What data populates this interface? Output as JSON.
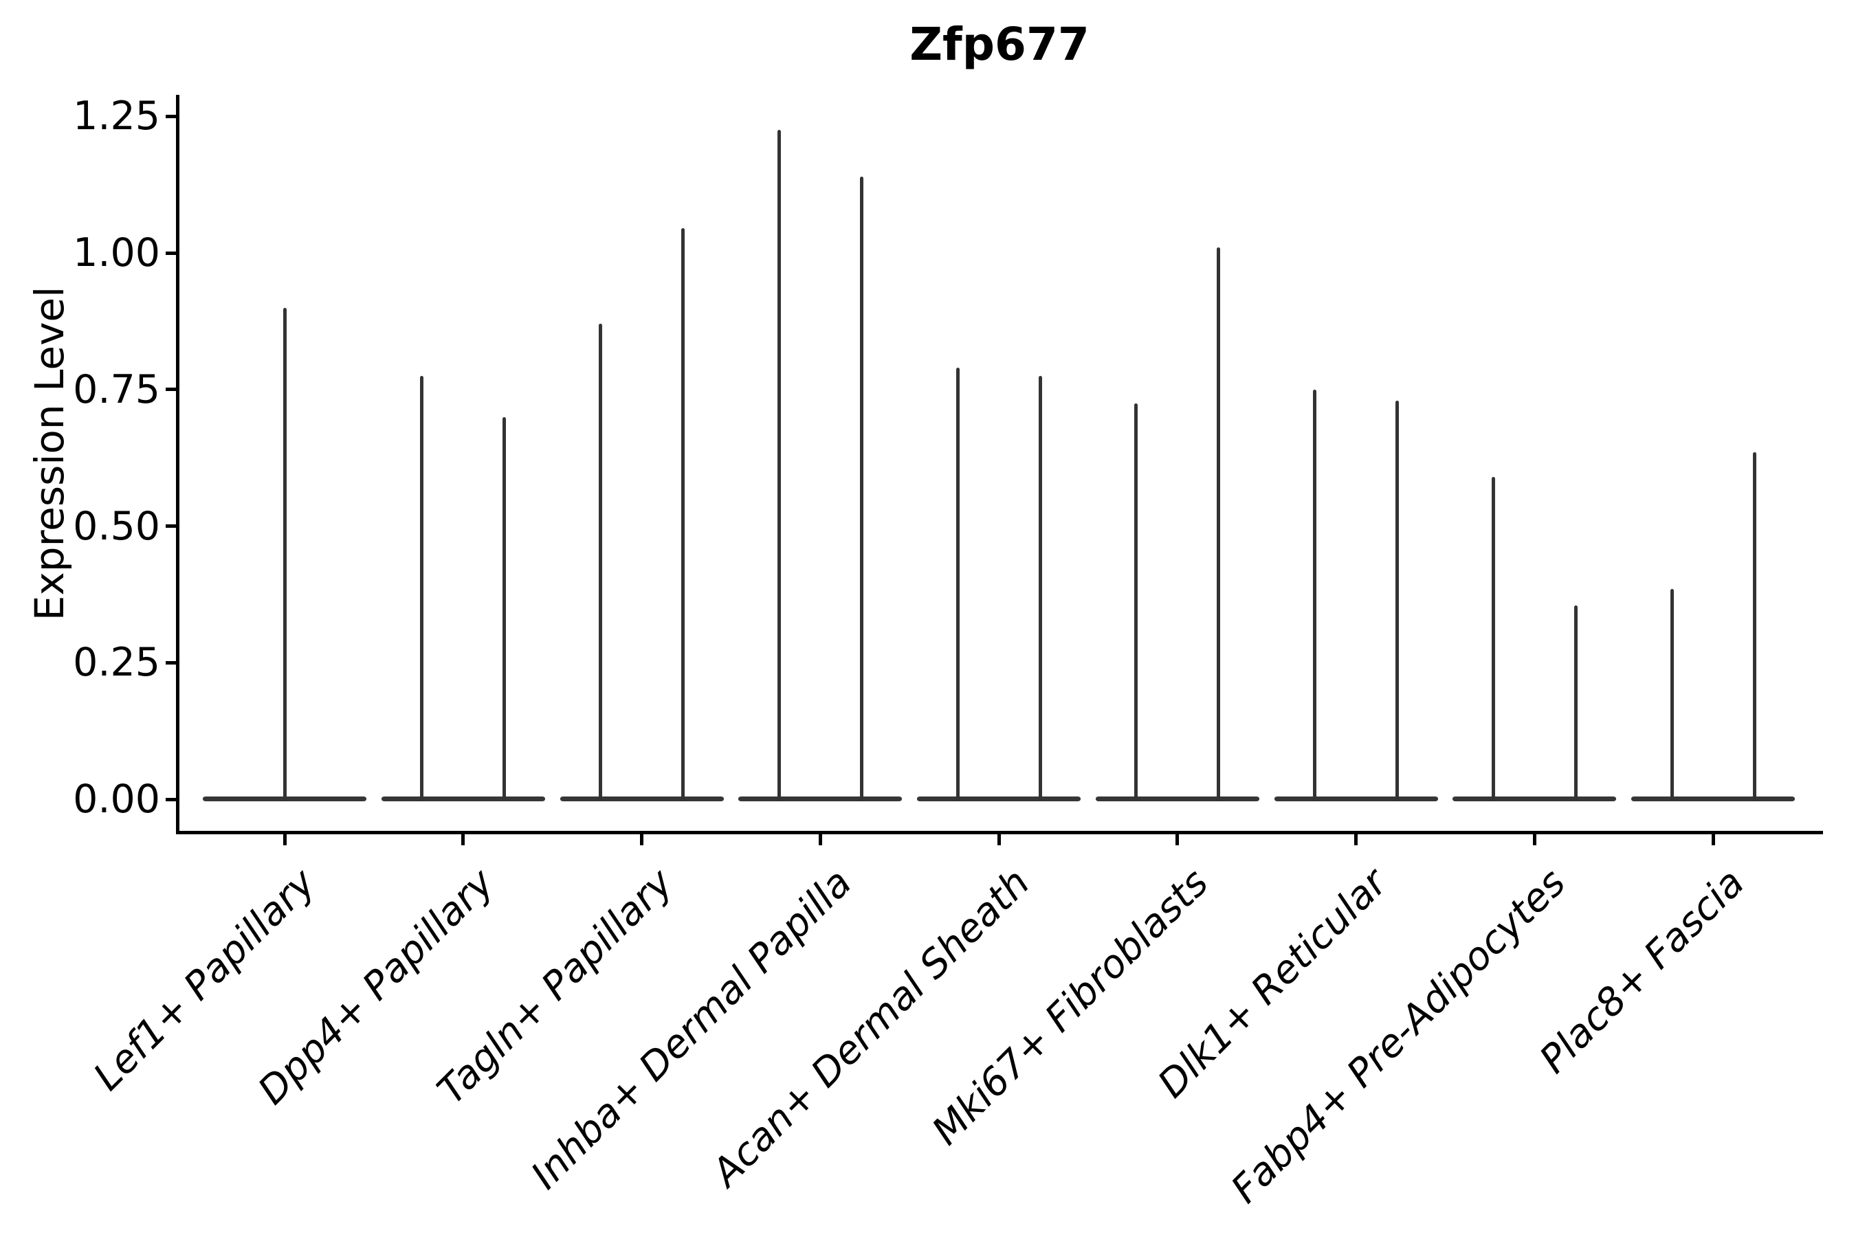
{
  "figure": {
    "title": "Zfp677",
    "background_color": "#ffffff",
    "axis_color": "#000000",
    "violin_color": "#333333"
  },
  "y_axis": {
    "label": "Expression Level",
    "tick_labels": [
      "0.00",
      "0.25",
      "0.50",
      "0.75",
      "1.00",
      "1.25"
    ]
  },
  "x_axis": {
    "label": "",
    "tick_labels": [
      "Lef1+ Papillary",
      "Dpp4+ Papillary",
      "Tagln+ Papillary",
      "Inhba+ Dermal Papilla",
      "Acan+ Dermal Sheath",
      "Mki67+ Fibroblasts",
      "Dlk1+ Reticular",
      "Fabp4+ Pre-Adipocytes",
      "Plac8+ Fascia"
    ]
  },
  "chart_data": {
    "type": "violin",
    "title": "Zfp677",
    "xlabel": "",
    "ylabel": "Expression Level",
    "categories": [
      "Lef1+ Papillary",
      "Dpp4+ Papillary",
      "Tagln+ Papillary",
      "Inhba+ Dermal Papilla",
      "Acan+ Dermal Sheath",
      "Mki67+ Fibroblasts",
      "Dlk1+ Reticular",
      "Fabp4+ Pre-Adipocytes",
      "Plac8+ Fascia"
    ],
    "series_description": "Each category shows a flat violin base at expression 0 with thin density spikes rising to the maximum expression value(s); first category has one centered spike, all others have a left and right spike pair",
    "spike_values": [
      [
        0.9
      ],
      [
        0.775,
        0.7
      ],
      [
        0.87,
        1.045
      ],
      [
        1.225,
        1.14
      ],
      [
        0.79,
        0.775
      ],
      [
        0.725,
        1.01
      ],
      [
        0.75,
        0.73
      ],
      [
        0.59,
        0.355
      ],
      [
        0.385,
        0.635
      ]
    ],
    "baseline_value": 0.0,
    "yticks": [
      0.0,
      0.25,
      0.5,
      0.75,
      1.0,
      1.25
    ],
    "ytick_labels": [
      "0.00",
      "0.25",
      "0.50",
      "0.75",
      "1.00",
      "1.25"
    ],
    "ylim": [
      -0.06,
      1.285
    ],
    "grid": false,
    "legend": null,
    "xtick_label_rotation_deg": 45,
    "xtick_label_style": "italic",
    "colors": {
      "violin": "#333333",
      "axis": "#000000",
      "text": "#000000"
    }
  }
}
